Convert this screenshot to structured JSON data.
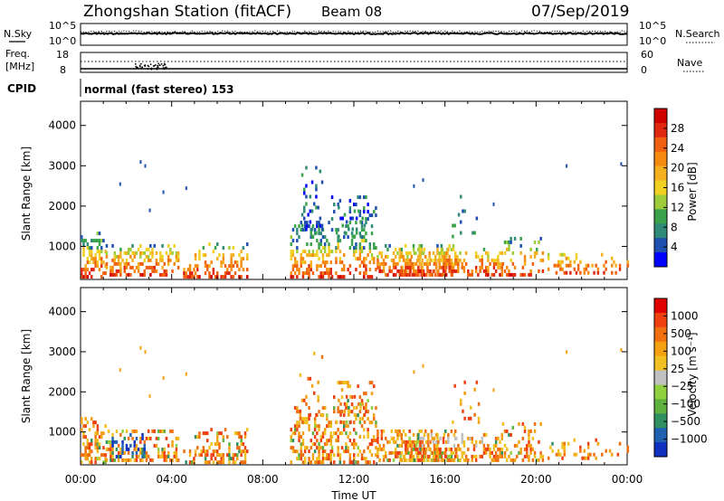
{
  "header": {
    "title": "Zhongshan Station (fitACF)",
    "beam": "Beam 08",
    "date": "07/Sep/2019"
  },
  "noise_panel": {
    "left_label": "N.Sky",
    "right_label": "N.Search",
    "tick_top": "10^5",
    "tick_bottom": "10^0"
  },
  "freq_panel": {
    "left_label_line1": "Freq.",
    "left_label_line2": "[MHz]",
    "right_label": "Nave",
    "left_ticks": [
      "18",
      "8"
    ],
    "right_ticks": [
      "60",
      "0"
    ]
  },
  "cpid": {
    "label": "CPID",
    "value": "normal (fast stereo) 153"
  },
  "chart_data": [
    {
      "type": "heatmap",
      "title": "",
      "quantity": "Power",
      "xlabel": "",
      "ylabel": "Slant Range [km]",
      "xlim_hours": [
        0,
        24
      ],
      "ylim": [
        180,
        4600
      ],
      "y_ticks": [
        "1000",
        "2000",
        "3000",
        "4000"
      ],
      "colorbar": {
        "label": "Power [dB]",
        "ticks": [
          "4",
          "8",
          "12",
          "16",
          "20",
          "24",
          "28"
        ],
        "colors": [
          "#0000ff",
          "#1f4fb0",
          "#2f8a77",
          "#3aa24a",
          "#9ccc3a",
          "#f0d020",
          "#f5b020",
          "#f58a10",
          "#f06010",
          "#e02810",
          "#d00000"
        ]
      }
    },
    {
      "type": "heatmap",
      "title": "",
      "quantity": "Velocity",
      "xlabel": "Time UT",
      "ylabel": "Slant Range [km]",
      "xlim_hours": [
        0,
        24
      ],
      "ylim": [
        180,
        4600
      ],
      "y_ticks": [
        "1000",
        "2000",
        "3000",
        "4000"
      ],
      "x_ticks": [
        "00:00",
        "04:00",
        "08:00",
        "12:00",
        "16:00",
        "20:00",
        "00:00"
      ],
      "colorbar": {
        "label": "Velocity [m s⁻¹]",
        "ticks": [
          "1000",
          "500",
          "100",
          "25",
          "−25",
          "−100",
          "−500",
          "−1000"
        ],
        "colors": [
          "#1030c0",
          "#2060b0",
          "#309060",
          "#60b040",
          "#90d040",
          "#c0c0c0",
          "#f0c020",
          "#f5a010",
          "#f07010",
          "#f04010",
          "#e00000"
        ]
      }
    }
  ]
}
